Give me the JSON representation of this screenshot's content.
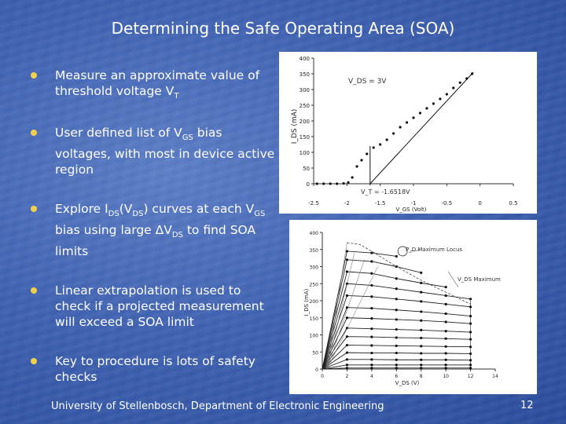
{
  "slide": {
    "title": "Determining the Safe Operating Area (SOA)",
    "footer": "University of Stellenbosch, Department of Electronic Engineering",
    "page_number": "12",
    "accent_color": "#f2d14a"
  },
  "bullets": [
    {
      "text": "Measure an approximate value of threshold voltage V",
      "sub": "T"
    },
    {
      "pre": "User defined list of V",
      "sub": "GS",
      "post": " bias voltages, with most in device active region"
    },
    {
      "pre": "Explore I",
      "sub1": "DS",
      "mid1": "(V",
      "sub2": "DS",
      "mid2": ") curves at each V",
      "sub3": "GS",
      "mid3": " bias using large ΔV",
      "sub4": "DS",
      "post": " to find SOA limits"
    },
    {
      "text": "Linear extrapolation is used to check if a projected measurement will exceed a SOA limit"
    },
    {
      "text": "Key to procedure is lots of safety checks"
    }
  ],
  "chart_data": [
    {
      "type": "scatter",
      "ylabel": "I_DS (mA)",
      "xlabel": "V_GS (Volt)",
      "annotation_vds": "V_DS = 3V",
      "annotation_vt": "V_T = -1.6518V",
      "xlim": [
        -2.5,
        0.5
      ],
      "ylim": [
        0,
        400
      ],
      "xticks": [
        "-2.5",
        "-2",
        "-1.5",
        "-1",
        "-0.5",
        "0",
        "0.5"
      ],
      "yticks": [
        "0",
        "50",
        "100",
        "150",
        "200",
        "250",
        "300",
        "350",
        "400"
      ],
      "x": [
        -2.45,
        -2.35,
        -2.25,
        -2.15,
        -2.05,
        -1.98,
        -1.92,
        -1.85,
        -1.78,
        -1.7,
        -1.6,
        -1.5,
        -1.4,
        -1.3,
        -1.2,
        -1.1,
        -1.0,
        -0.9,
        -0.8,
        -0.7,
        -0.6,
        -0.5,
        -0.4,
        -0.3,
        -0.2,
        -0.12
      ],
      "y": [
        0,
        0,
        0,
        0,
        1,
        4,
        20,
        55,
        75,
        95,
        115,
        125,
        140,
        160,
        180,
        195,
        210,
        225,
        240,
        255,
        270,
        285,
        305,
        322,
        335,
        350
      ],
      "fit_line": {
        "x": [
          -1.6518,
          -0.1
        ],
        "y": [
          0,
          355
        ]
      },
      "vt": -1.6518
    },
    {
      "type": "line",
      "ylabel": "I_DS (mA)",
      "xlabel": "V_DS (V)",
      "annotation_pd": "P_D Maximum Locus",
      "annotation_vds_max": "V_DS Maximum",
      "xlim": [
        0,
        14
      ],
      "ylim": [
        0,
        400
      ],
      "xticks": [
        "0",
        "2",
        "4",
        "6",
        "8",
        "10",
        "12",
        "14"
      ],
      "yticks": [
        "0",
        "50",
        "100",
        "150",
        "200",
        "250",
        "300",
        "350",
        "400"
      ],
      "x": [
        0,
        2,
        4,
        6,
        8,
        10,
        12
      ],
      "series": [
        {
          "values": [
            0,
            345,
            340,
            330,
            null,
            null,
            null
          ]
        },
        {
          "values": [
            0,
            320,
            315,
            300,
            282,
            null,
            null
          ]
        },
        {
          "values": [
            0,
            285,
            280,
            265,
            252,
            240,
            null
          ]
        },
        {
          "values": [
            0,
            250,
            245,
            235,
            225,
            215,
            205
          ]
        },
        {
          "values": [
            0,
            215,
            212,
            205,
            198,
            190,
            182
          ]
        },
        {
          "values": [
            0,
            180,
            178,
            173,
            168,
            162,
            155
          ]
        },
        {
          "values": [
            0,
            150,
            148,
            145,
            142,
            138,
            133
          ]
        },
        {
          "values": [
            0,
            120,
            118,
            116,
            114,
            111,
            108
          ]
        },
        {
          "values": [
            0,
            95,
            94,
            92,
            91,
            89,
            87
          ]
        },
        {
          "values": [
            0,
            70,
            69,
            68,
            67,
            66,
            65
          ]
        },
        {
          "values": [
            0,
            48,
            47,
            47,
            46,
            46,
            45
          ]
        },
        {
          "values": [
            0,
            28,
            28,
            27,
            27,
            27,
            26
          ]
        },
        {
          "values": [
            0,
            12,
            12,
            12,
            12,
            12,
            12
          ]
        },
        {
          "values": [
            0,
            3,
            3,
            3,
            3,
            3,
            3
          ]
        }
      ],
      "pd_locus": {
        "x": [
          2,
          3,
          4,
          6,
          8,
          10,
          12
        ],
        "y": [
          370,
          365,
          345,
          300,
          260,
          225,
          190
        ]
      }
    }
  ]
}
